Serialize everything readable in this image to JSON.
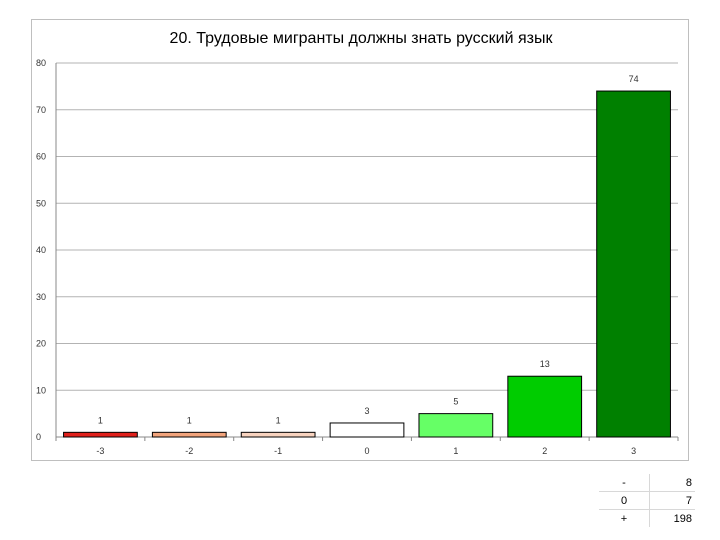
{
  "chart_data": {
    "type": "bar",
    "title": "20. Трудовые мигранты должны знать русский язык",
    "xlabel": "",
    "ylabel": "",
    "categories": [
      "-3",
      "-2",
      "-1",
      "0",
      "1",
      "2",
      "3"
    ],
    "values": [
      1,
      1,
      1,
      3,
      5,
      13,
      74
    ],
    "data_labels": [
      "1",
      "1",
      "1",
      "3",
      "5",
      "13",
      "74"
    ],
    "bar_colors": [
      "#e0201b",
      "#f2a47c",
      "#f8d3bf",
      "#ffffff",
      "#66ff66",
      "#00cc00",
      "#008000"
    ],
    "ylim": [
      0,
      80
    ],
    "yticks": [
      0,
      10,
      20,
      30,
      40,
      50,
      60,
      70,
      80
    ],
    "grid": true,
    "legend": "none"
  },
  "summary_table": [
    {
      "symbol": "-",
      "value": "8"
    },
    {
      "symbol": "0",
      "value": "7"
    },
    {
      "symbol": "+",
      "value": "198"
    }
  ]
}
